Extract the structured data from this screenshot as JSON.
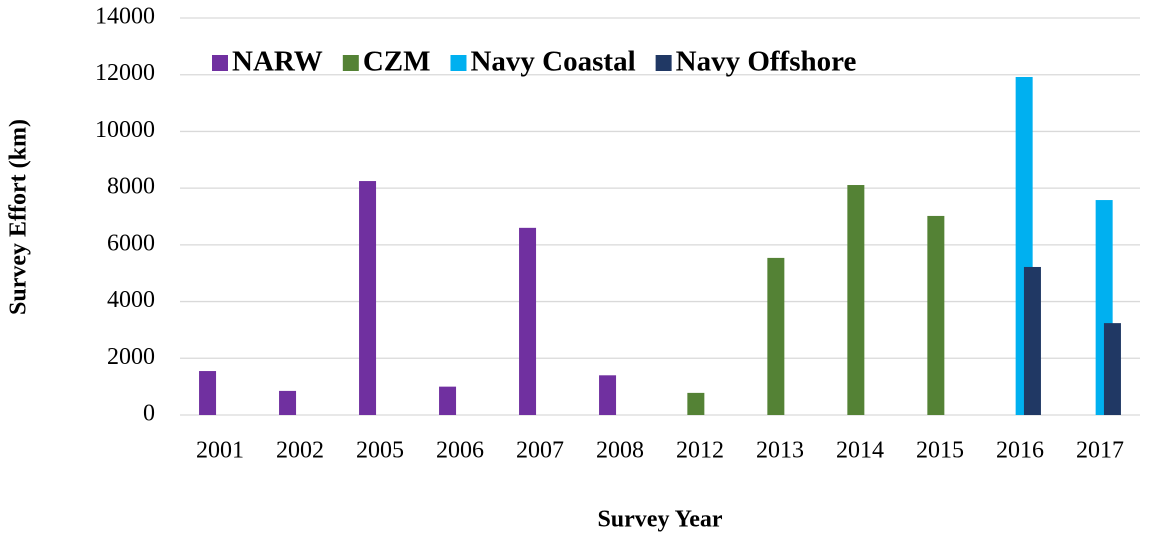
{
  "chart_data": {
    "type": "bar",
    "x_label": "Survey Year",
    "y_label": "Survey Effort (km)",
    "categories": [
      "2001",
      "2002",
      "2005",
      "2006",
      "2007",
      "2008",
      "2012",
      "2013",
      "2014",
      "2015",
      "2016",
      "2017"
    ],
    "series": [
      {
        "name": "NARW",
        "color": "#7030a0",
        "values": [
          1550,
          850,
          8250,
          1000,
          6600,
          1400,
          null,
          null,
          null,
          null,
          null,
          null
        ]
      },
      {
        "name": "CZM",
        "color": "#548235",
        "values": [
          null,
          null,
          null,
          null,
          null,
          null,
          780,
          5540,
          8110,
          7020,
          null,
          null
        ]
      },
      {
        "name": "Navy Coastal",
        "color": "#00b0f0",
        "values": [
          null,
          null,
          null,
          null,
          null,
          null,
          null,
          null,
          null,
          null,
          11920,
          7580
        ]
      },
      {
        "name": "Navy Offshore",
        "color": "#203864",
        "values": [
          null,
          null,
          null,
          null,
          null,
          null,
          null,
          null,
          null,
          null,
          5220,
          3240
        ]
      }
    ],
    "ylim": [
      0,
      14000
    ],
    "yticks": [
      0,
      2000,
      4000,
      6000,
      8000,
      10000,
      12000,
      14000
    ],
    "grid": true,
    "legend": "top"
  }
}
